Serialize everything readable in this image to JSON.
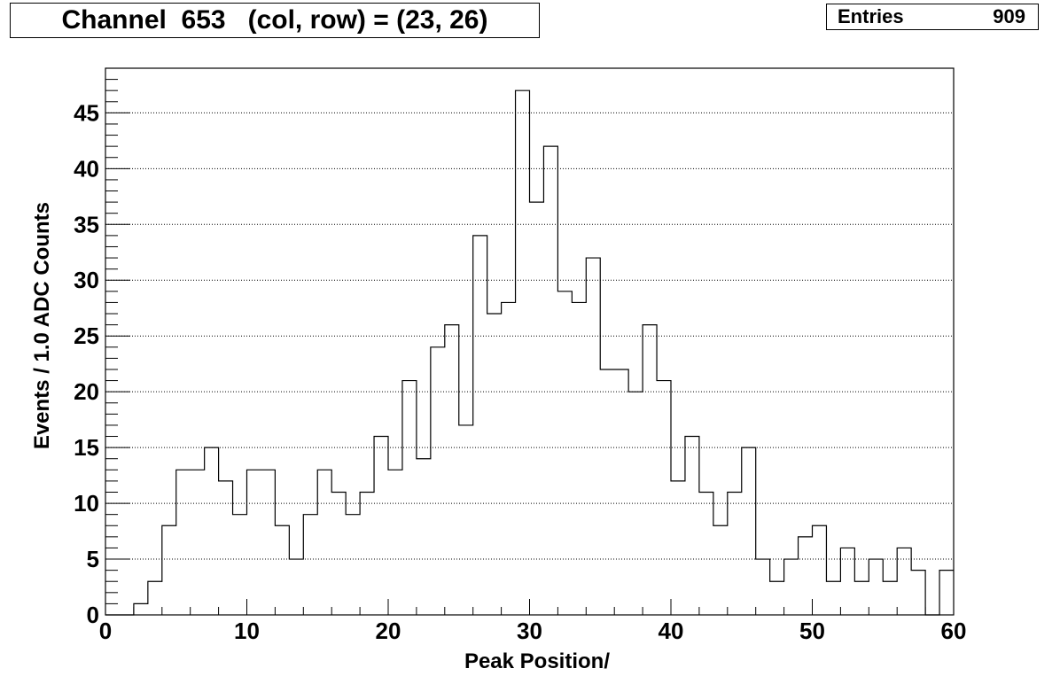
{
  "title": "Channel  653   (col, row) = (23, 26)",
  "stats": {
    "label": "Entries",
    "value": "909"
  },
  "chart_data": {
    "type": "bar",
    "style": "step-histogram",
    "xlabel": "Peak Position/",
    "ylabel": "Events / 1.0 ADC Counts",
    "xlim": [
      0,
      60
    ],
    "ylim": [
      0,
      49
    ],
    "bin_width": 1,
    "grid": {
      "x": false,
      "y": true
    },
    "x_ticks": [
      0,
      10,
      20,
      30,
      40,
      50,
      60
    ],
    "y_ticks": [
      0,
      5,
      10,
      15,
      20,
      25,
      30,
      35,
      40,
      45
    ],
    "bin_lows": [
      0,
      1,
      2,
      3,
      4,
      5,
      6,
      7,
      8,
      9,
      10,
      11,
      12,
      13,
      14,
      15,
      16,
      17,
      18,
      19,
      20,
      21,
      22,
      23,
      24,
      25,
      26,
      27,
      28,
      29,
      30,
      31,
      32,
      33,
      34,
      35,
      36,
      37,
      38,
      39,
      40,
      41,
      42,
      43,
      44,
      45,
      46,
      47,
      48,
      49,
      50,
      51,
      52,
      53,
      54,
      55,
      56,
      57,
      58,
      59
    ],
    "values": [
      0,
      0,
      1,
      3,
      8,
      13,
      13,
      15,
      12,
      9,
      13,
      13,
      8,
      5,
      9,
      13,
      11,
      9,
      11,
      16,
      13,
      21,
      14,
      24,
      26,
      17,
      34,
      27,
      28,
      47,
      37,
      42,
      29,
      28,
      32,
      22,
      22,
      20,
      26,
      21,
      12,
      16,
      11,
      8,
      11,
      15,
      5,
      3,
      5,
      7,
      8,
      3,
      6,
      3,
      5,
      3,
      6,
      4,
      0,
      4
    ]
  }
}
